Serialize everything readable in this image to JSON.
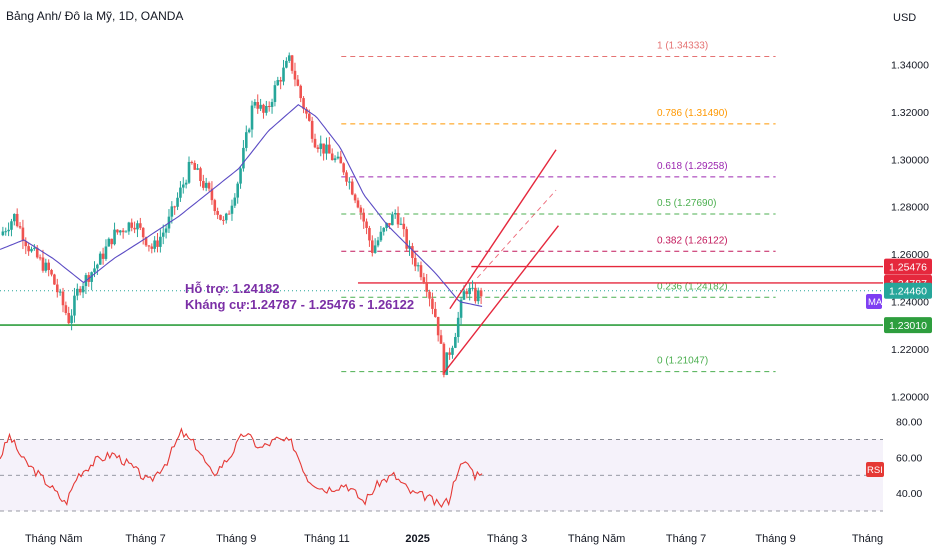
{
  "header": {
    "title": "Bảng Anh/ Đô la Mỹ, 1D, OANDA",
    "currency": "USD"
  },
  "colors": {
    "up": "#26a69a",
    "down": "#ef5350",
    "ma": "#5b4bc4",
    "rsi": "#e53935",
    "support": "#2e9e3e",
    "resistance": "#e5283d",
    "annotation": "#7b2fa6",
    "fib_1": "#e57373",
    "fib_0786": "#ff9800",
    "fib_0618": "#9c27b0",
    "fib_05": "#4caf50",
    "fib_0382": "#c2185b",
    "fib_0236": "#4caf50",
    "fib_0": "#4caf50"
  },
  "annotation": {
    "support_text": "Hỗ trợ: 1.24182",
    "resistance_text": "Kháng cự:1.24787 - 1.25476 - 1.26122"
  },
  "fib_levels": [
    {
      "label": "1 (1.34333)",
      "value": 1.34333,
      "color": "#e57373"
    },
    {
      "label": "0.786 (1.31490)",
      "value": 1.3149,
      "color": "#ff9800"
    },
    {
      "label": "0.618 (1.29258)",
      "value": 1.29258,
      "color": "#9c27b0"
    },
    {
      "label": "0.5 (1.27690)",
      "value": 1.2769,
      "color": "#4caf50"
    },
    {
      "label": "0.382 (1.26122)",
      "value": 1.26122,
      "color": "#c2185b"
    },
    {
      "label": "0.236 (1.24182)",
      "value": 1.24182,
      "color": "#4caf50"
    },
    {
      "label": "0 (1.21047)",
      "value": 1.21047,
      "color": "#4caf50"
    }
  ],
  "price_tags": [
    {
      "label": "1.25476",
      "value": 1.25476,
      "color": "#e5283d"
    },
    {
      "label": "1.24787",
      "value": 1.24787,
      "color": "#e5283d"
    },
    {
      "label": "1.24460",
      "value": 1.2446,
      "color": "#26a69a"
    },
    {
      "label": "1.23010",
      "value": 1.2301,
      "color": "#2e9e3e"
    }
  ],
  "ma_tag": "MA",
  "rsi_tag": "RSI",
  "price_axis": {
    "ticks": [
      "1.34000",
      "1.32000",
      "1.30000",
      "1.28000",
      "1.26000",
      "1.24000",
      "1.22000",
      "1.20000"
    ],
    "values": [
      1.34,
      1.32,
      1.3,
      1.28,
      1.26,
      1.24,
      1.22,
      1.2
    ],
    "range": [
      1.196,
      1.349
    ]
  },
  "rsi_axis": {
    "ticks": [
      "80.00",
      "60.00",
      "40.00"
    ],
    "values": [
      80,
      60,
      40
    ],
    "range": [
      30,
      82
    ],
    "band": [
      30,
      70
    ],
    "mid": 50
  },
  "time_axis": {
    "labels": [
      "Tháng Năm",
      "Tháng 7",
      "Tháng 9",
      "Tháng 11",
      "2025",
      "Tháng 3",
      "Tháng Năm",
      "Tháng 7",
      "Tháng 9",
      "Tháng"
    ],
    "bold": [
      false,
      false,
      false,
      false,
      true,
      false,
      false,
      false,
      false,
      false
    ],
    "bar_index": [
      45,
      122,
      198,
      274,
      350,
      425,
      500,
      575,
      650,
      727
    ]
  },
  "chart_data": {
    "type": "candlestick",
    "title": "Bảng Anh/ Đô la Mỹ, 1D, OANDA",
    "ylabel": "USD",
    "ylim": [
      1.196,
      1.349
    ],
    "total_bars": 740,
    "key_points": [
      {
        "bar": 0,
        "price": 1.268
      },
      {
        "bar": 12,
        "price": 1.276
      },
      {
        "bar": 25,
        "price": 1.262
      },
      {
        "bar": 42,
        "price": 1.252
      },
      {
        "bar": 58,
        "price": 1.232
      },
      {
        "bar": 66,
        "price": 1.246
      },
      {
        "bar": 82,
        "price": 1.256
      },
      {
        "bar": 95,
        "price": 1.268
      },
      {
        "bar": 112,
        "price": 1.274
      },
      {
        "bar": 128,
        "price": 1.262
      },
      {
        "bar": 140,
        "price": 1.272
      },
      {
        "bar": 160,
        "price": 1.298
      },
      {
        "bar": 176,
        "price": 1.285
      },
      {
        "bar": 188,
        "price": 1.272
      },
      {
        "bar": 200,
        "price": 1.292
      },
      {
        "bar": 213,
        "price": 1.326
      },
      {
        "bar": 222,
        "price": 1.318
      },
      {
        "bar": 232,
        "price": 1.332
      },
      {
        "bar": 243,
        "price": 1.342
      },
      {
        "bar": 252,
        "price": 1.326
      },
      {
        "bar": 264,
        "price": 1.308
      },
      {
        "bar": 276,
        "price": 1.302
      },
      {
        "bar": 288,
        "price": 1.296
      },
      {
        "bar": 300,
        "price": 1.282
      },
      {
        "bar": 312,
        "price": 1.262
      },
      {
        "bar": 322,
        "price": 1.27
      },
      {
        "bar": 332,
        "price": 1.278
      },
      {
        "bar": 342,
        "price": 1.262
      },
      {
        "bar": 356,
        "price": 1.25
      },
      {
        "bar": 366,
        "price": 1.232
      },
      {
        "bar": 372,
        "price": 1.212
      },
      {
        "bar": 380,
        "price": 1.224
      },
      {
        "bar": 390,
        "price": 1.246
      },
      {
        "bar": 398,
        "price": 1.242
      },
      {
        "bar": 404,
        "price": 1.244
      }
    ],
    "ma_points": [
      {
        "bar": 0,
        "price": 1.262
      },
      {
        "bar": 20,
        "price": 1.266
      },
      {
        "bar": 45,
        "price": 1.258
      },
      {
        "bar": 70,
        "price": 1.248
      },
      {
        "bar": 95,
        "price": 1.258
      },
      {
        "bar": 120,
        "price": 1.266
      },
      {
        "bar": 150,
        "price": 1.276
      },
      {
        "bar": 175,
        "price": 1.286
      },
      {
        "bar": 200,
        "price": 1.296
      },
      {
        "bar": 225,
        "price": 1.312
      },
      {
        "bar": 250,
        "price": 1.323
      },
      {
        "bar": 265,
        "price": 1.318
      },
      {
        "bar": 285,
        "price": 1.305
      },
      {
        "bar": 305,
        "price": 1.285
      },
      {
        "bar": 325,
        "price": 1.272
      },
      {
        "bar": 345,
        "price": 1.262
      },
      {
        "bar": 365,
        "price": 1.252
      },
      {
        "bar": 385,
        "price": 1.24
      },
      {
        "bar": 404,
        "price": 1.238
      }
    ],
    "rsi_points": [
      {
        "bar": 0,
        "rsi": 60
      },
      {
        "bar": 8,
        "rsi": 72
      },
      {
        "bar": 20,
        "rsi": 58
      },
      {
        "bar": 30,
        "rsi": 52
      },
      {
        "bar": 42,
        "rsi": 44
      },
      {
        "bar": 55,
        "rsi": 34
      },
      {
        "bar": 65,
        "rsi": 50
      },
      {
        "bar": 80,
        "rsi": 58
      },
      {
        "bar": 95,
        "rsi": 62
      },
      {
        "bar": 110,
        "rsi": 55
      },
      {
        "bar": 125,
        "rsi": 46
      },
      {
        "bar": 140,
        "rsi": 58
      },
      {
        "bar": 152,
        "rsi": 74
      },
      {
        "bar": 165,
        "rsi": 66
      },
      {
        "bar": 178,
        "rsi": 50
      },
      {
        "bar": 192,
        "rsi": 60
      },
      {
        "bar": 205,
        "rsi": 74
      },
      {
        "bar": 218,
        "rsi": 65
      },
      {
        "bar": 232,
        "rsi": 70
      },
      {
        "bar": 245,
        "rsi": 68
      },
      {
        "bar": 258,
        "rsi": 48
      },
      {
        "bar": 272,
        "rsi": 42
      },
      {
        "bar": 290,
        "rsi": 45
      },
      {
        "bar": 305,
        "rsi": 35
      },
      {
        "bar": 318,
        "rsi": 46
      },
      {
        "bar": 330,
        "rsi": 50
      },
      {
        "bar": 345,
        "rsi": 40
      },
      {
        "bar": 358,
        "rsi": 38
      },
      {
        "bar": 368,
        "rsi": 33
      },
      {
        "bar": 376,
        "rsi": 36
      },
      {
        "bar": 384,
        "rsi": 54
      },
      {
        "bar": 392,
        "rsi": 57
      },
      {
        "bar": 398,
        "rsi": 50
      },
      {
        "bar": 404,
        "rsi": 53
      }
    ],
    "horizontal_lines": [
      {
        "name": "resistance",
        "value": 1.24787
      },
      {
        "name": "support",
        "value": 1.2301
      }
    ],
    "channel": {
      "upper": {
        "from": {
          "bar": 377,
          "price": 1.237
        },
        "to": {
          "bar": 466,
          "price": 1.304
        }
      },
      "lower": {
        "from": {
          "bar": 372,
          "price": 1.21
        },
        "to": {
          "bar": 468,
          "price": 1.272
        }
      },
      "middle": {
        "from": {
          "bar": 400,
          "price": 1.25
        },
        "to": {
          "bar": 466,
          "price": 1.287
        }
      }
    },
    "resistance_box": {
      "bar_from": 300,
      "bar_to": 740,
      "price": 1.24787
    },
    "box_top": {
      "bar_from": 395,
      "bar_to": 740,
      "price": 1.25476
    }
  }
}
